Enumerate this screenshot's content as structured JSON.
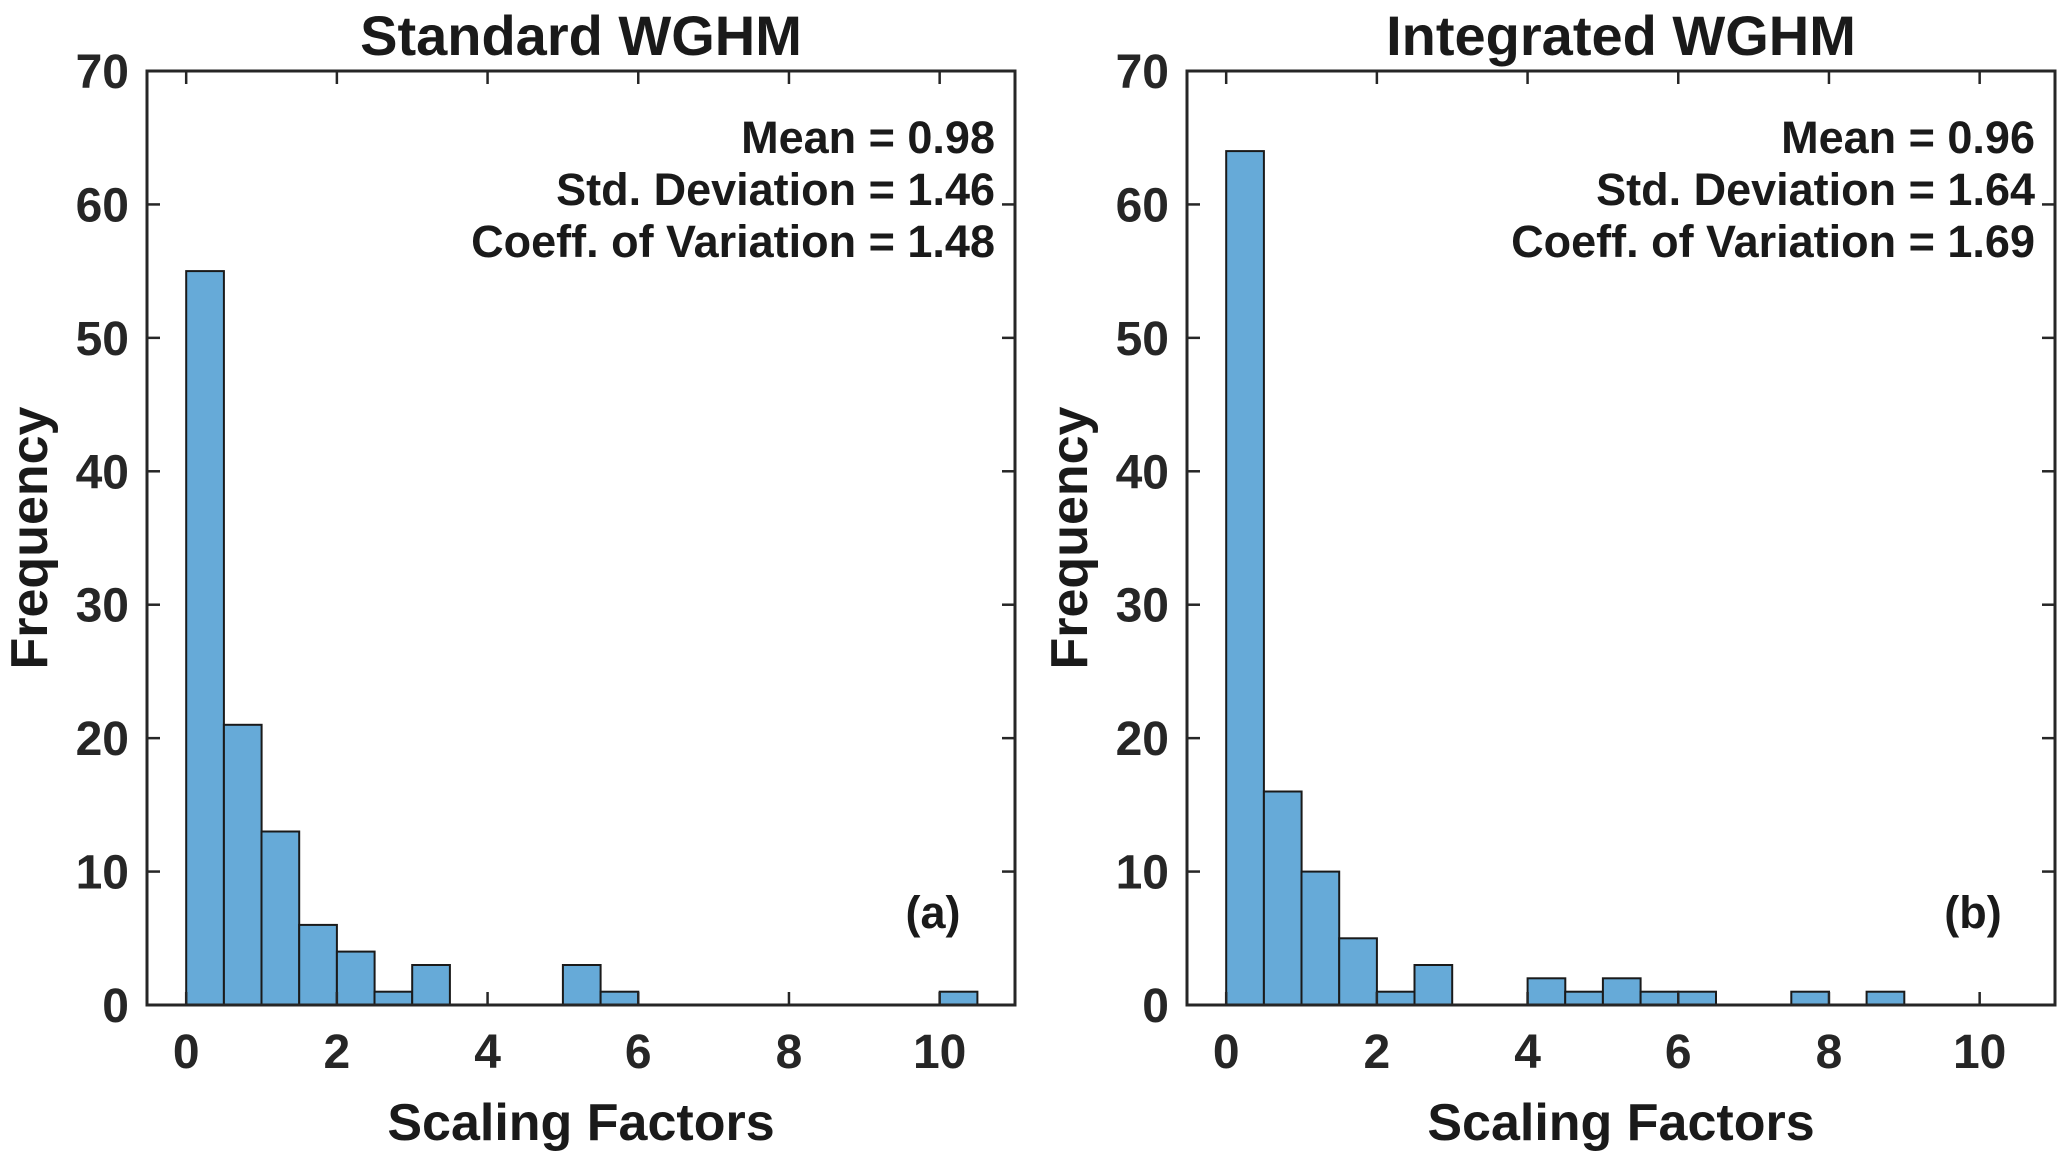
{
  "style": {
    "background": "#FFFFFF",
    "bar_fill": "#66AAD8",
    "bar_edge": "#1A1A1A",
    "axis_color": "#262626",
    "tick_label_color": "#262626",
    "text_color": "#1A1A1A"
  },
  "chart_data": [
    {
      "type": "bar",
      "subtype": "histogram",
      "panel": "a",
      "title": "Standard WGHM",
      "corner_label": "(a)",
      "xlabel": "Scaling Factors",
      "ylabel": "Frequency",
      "annotations": [
        "Mean = 0.98",
        "Std. Deviation = 1.46",
        "Coeff. of Variation = 1.48"
      ],
      "stats": {
        "mean": 0.98,
        "std_deviation": 1.46,
        "coeff_of_variation": 1.48
      },
      "xlim": [
        -0.52,
        11.0
      ],
      "ylim": [
        0,
        70
      ],
      "xticks": [
        0,
        2,
        4,
        6,
        8,
        10
      ],
      "yticks": [
        0,
        10,
        20,
        30,
        40,
        50,
        60,
        70
      ],
      "grid": false,
      "legend": null,
      "bin_width": 0.5,
      "bins": [
        {
          "x0": 0.0,
          "x1": 0.5,
          "count": 55
        },
        {
          "x0": 0.5,
          "x1": 1.0,
          "count": 21
        },
        {
          "x0": 1.0,
          "x1": 1.5,
          "count": 13
        },
        {
          "x0": 1.5,
          "x1": 2.0,
          "count": 6
        },
        {
          "x0": 2.0,
          "x1": 2.5,
          "count": 4
        },
        {
          "x0": 2.5,
          "x1": 3.0,
          "count": 1
        },
        {
          "x0": 3.0,
          "x1": 3.5,
          "count": 3
        },
        {
          "x0": 5.0,
          "x1": 5.5,
          "count": 3
        },
        {
          "x0": 5.5,
          "x1": 6.0,
          "count": 1
        },
        {
          "x0": 10.0,
          "x1": 10.5,
          "count": 1
        }
      ]
    },
    {
      "type": "bar",
      "subtype": "histogram",
      "panel": "b",
      "title": "Integrated WGHM",
      "corner_label": "(b)",
      "xlabel": "Scaling Factors",
      "ylabel": "Frequency",
      "annotations": [
        "Mean = 0.96",
        "Std. Deviation = 1.64",
        "Coeff. of Variation = 1.69"
      ],
      "stats": {
        "mean": 0.96,
        "std_deviation": 1.64,
        "coeff_of_variation": 1.69
      },
      "xlim": [
        -0.52,
        11.0
      ],
      "ylim": [
        0,
        70
      ],
      "xticks": [
        0,
        2,
        4,
        6,
        8,
        10
      ],
      "yticks": [
        0,
        10,
        20,
        30,
        40,
        50,
        60,
        70
      ],
      "grid": false,
      "legend": null,
      "bin_width": 0.5,
      "bins": [
        {
          "x0": 0.0,
          "x1": 0.5,
          "count": 64
        },
        {
          "x0": 0.5,
          "x1": 1.0,
          "count": 16
        },
        {
          "x0": 1.0,
          "x1": 1.5,
          "count": 10
        },
        {
          "x0": 1.5,
          "x1": 2.0,
          "count": 5
        },
        {
          "x0": 2.0,
          "x1": 2.5,
          "count": 1
        },
        {
          "x0": 2.5,
          "x1": 3.0,
          "count": 3
        },
        {
          "x0": 4.0,
          "x1": 4.5,
          "count": 2
        },
        {
          "x0": 4.5,
          "x1": 5.0,
          "count": 1
        },
        {
          "x0": 5.0,
          "x1": 5.5,
          "count": 2
        },
        {
          "x0": 5.5,
          "x1": 6.0,
          "count": 1
        },
        {
          "x0": 6.0,
          "x1": 6.5,
          "count": 1
        },
        {
          "x0": 7.5,
          "x1": 8.0,
          "count": 1
        },
        {
          "x0": 8.5,
          "x1": 9.0,
          "count": 1
        }
      ]
    }
  ]
}
